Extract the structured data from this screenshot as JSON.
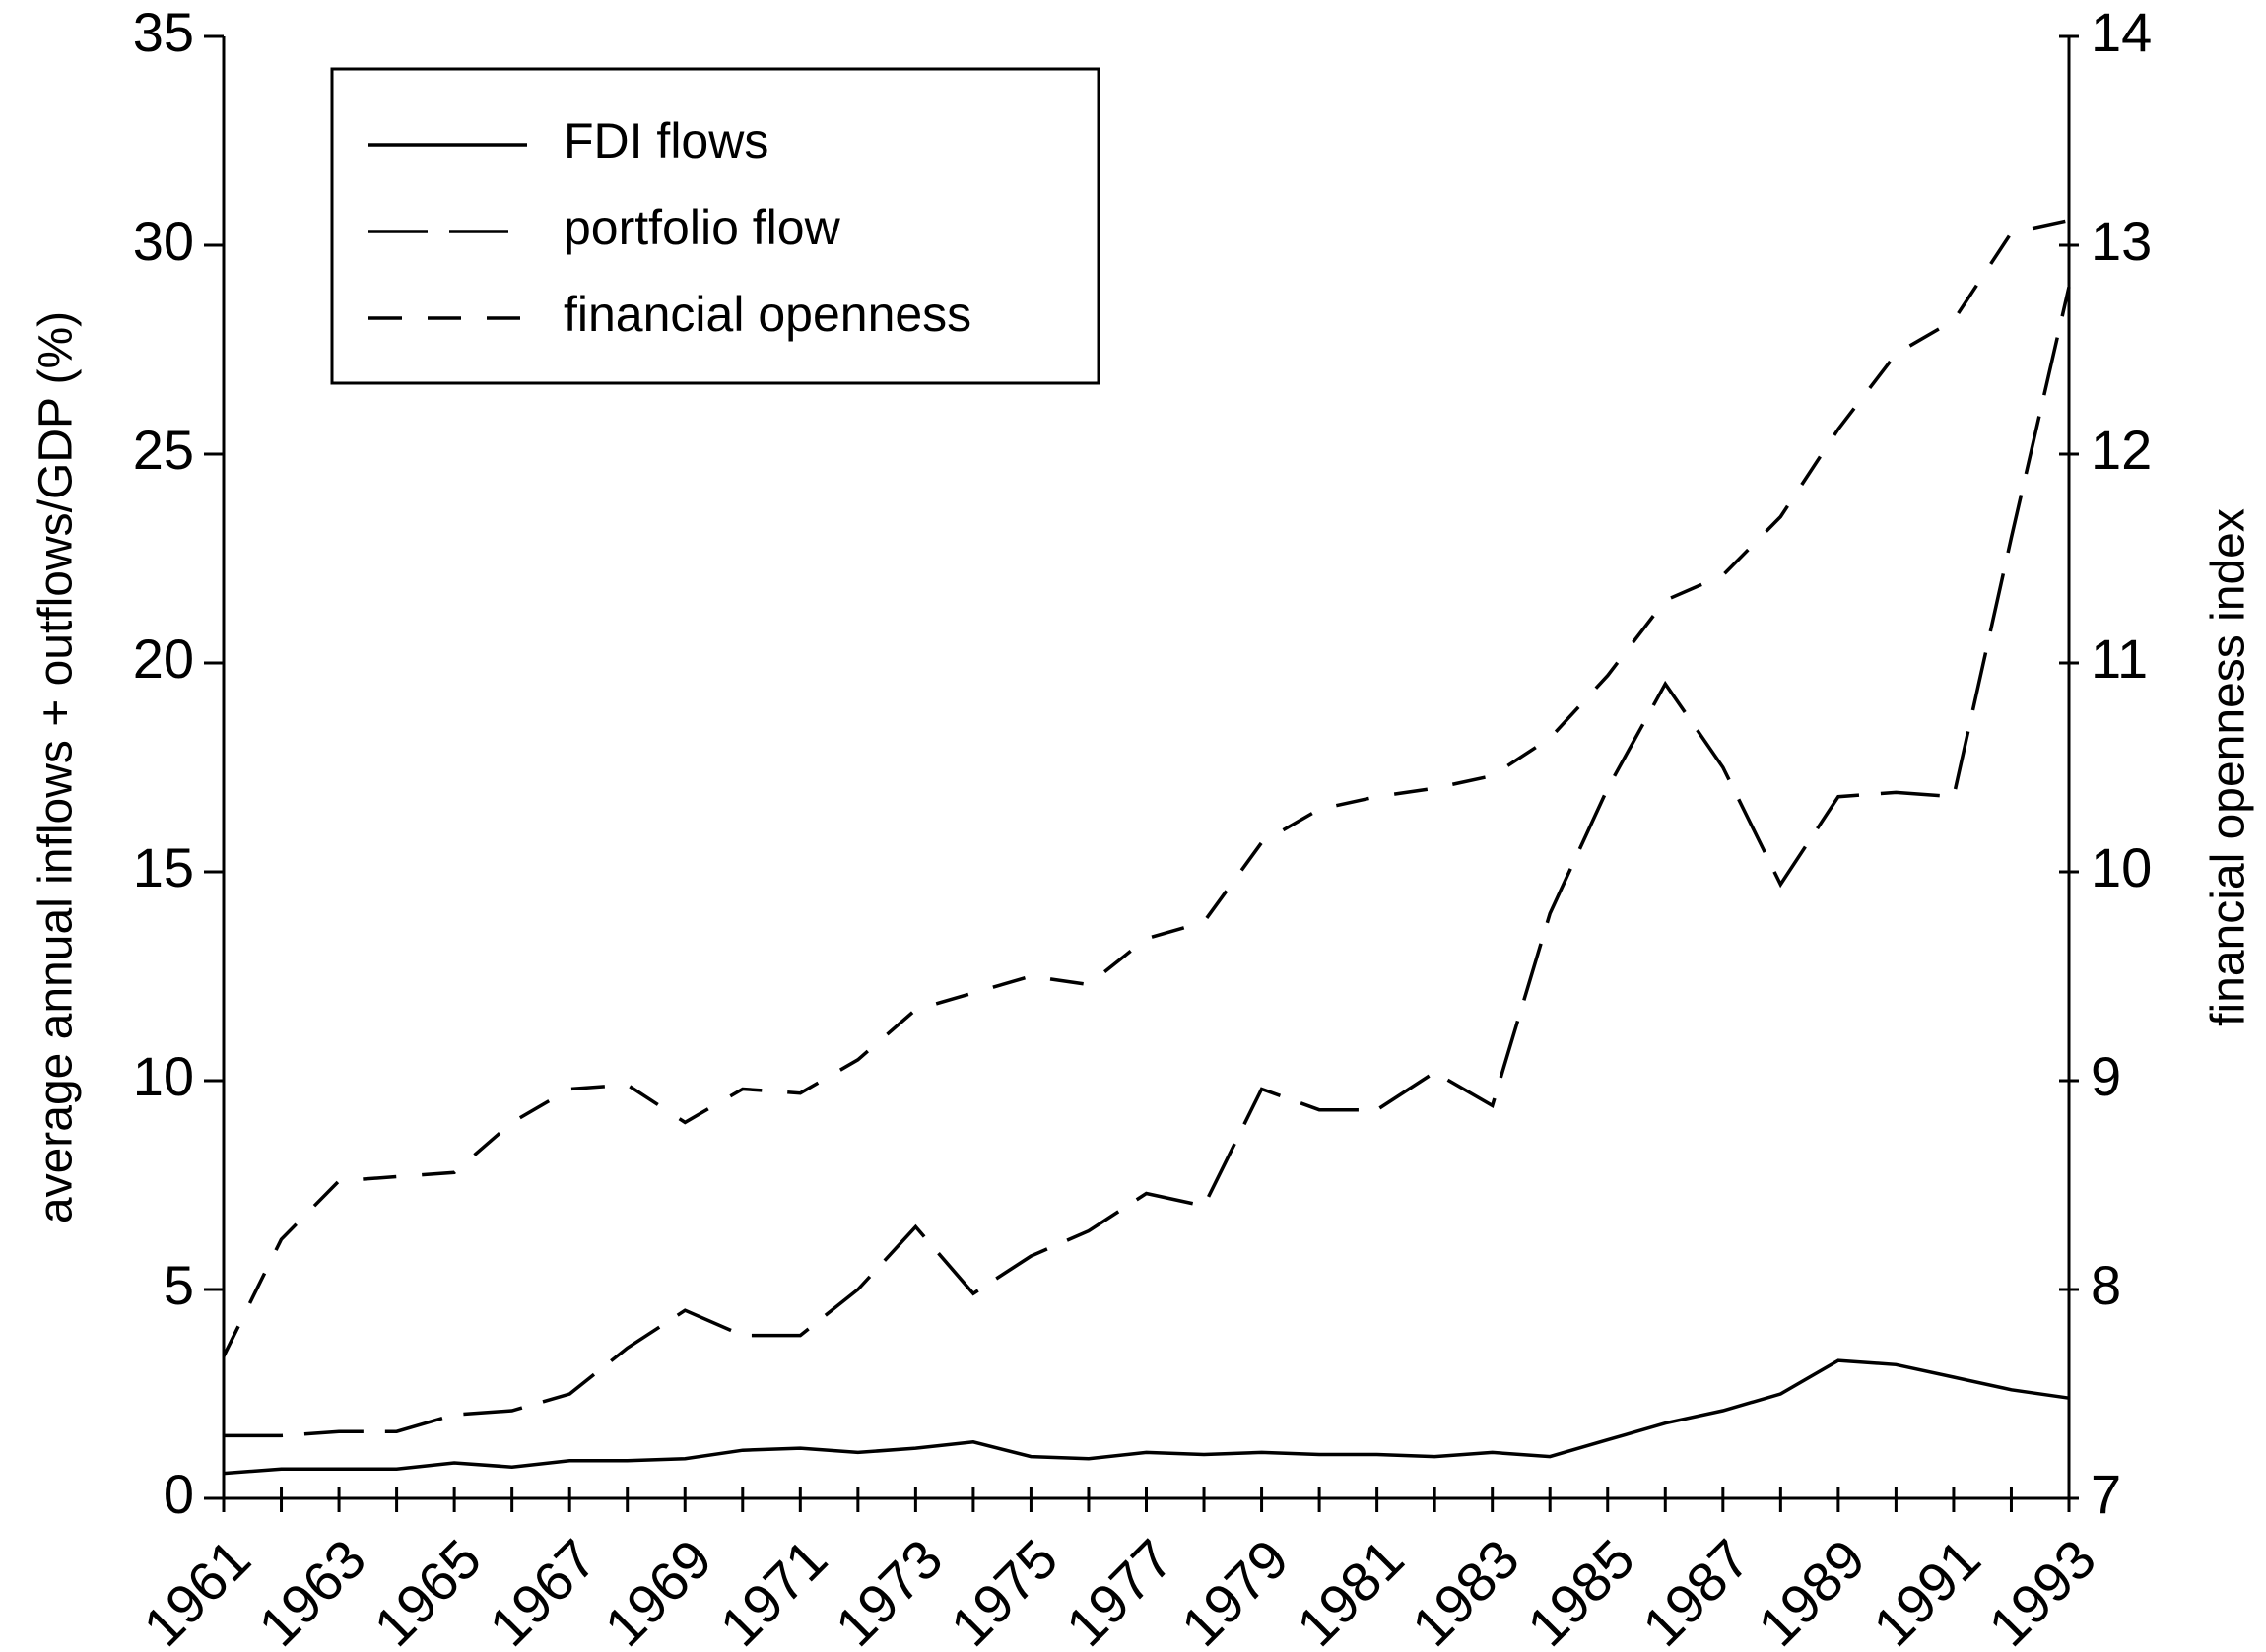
{
  "chart_data": {
    "type": "line",
    "categories": [
      "1961",
      null,
      "1963",
      null,
      "1965",
      null,
      "1967",
      null,
      "1969",
      null,
      "1971",
      null,
      "1973",
      null,
      "1975",
      null,
      "1977",
      null,
      "1979",
      null,
      "1981",
      null,
      "1983",
      null,
      "1985",
      null,
      "1987",
      null,
      "1989",
      null,
      "1991",
      null,
      "1993"
    ],
    "ylabel": "average annual inflows + outflows/GDP (%)",
    "y2label": "financial openness index",
    "ylim": [
      0,
      35
    ],
    "yticks": [
      0,
      5,
      10,
      15,
      20,
      25,
      30,
      35
    ],
    "y2lim": [
      7,
      14
    ],
    "y2ticks": [
      7,
      8,
      9,
      10,
      11,
      12,
      13,
      14
    ],
    "legend": "upper left",
    "series": [
      {
        "name": "FDI flows",
        "color": "#000000",
        "dash": "solid",
        "values": [
          0.6,
          0.7,
          0.7,
          0.7,
          0.85,
          0.75,
          0.9,
          0.9,
          0.95,
          1.15,
          1.2,
          1.1,
          1.2,
          1.35,
          1.0,
          0.95,
          1.1,
          1.05,
          1.1,
          1.05,
          1.05,
          1.0,
          1.1,
          1.0,
          1.4,
          1.8,
          2.1,
          2.5,
          3.3,
          3.2,
          2.9,
          2.6,
          2.4
        ]
      },
      {
        "name": "portfolio flow",
        "color": "#000000",
        "dash": "long",
        "values": [
          1.5,
          1.5,
          1.6,
          1.6,
          2.0,
          2.1,
          2.5,
          3.6,
          4.5,
          3.9,
          3.9,
          5.0,
          6.5,
          4.9,
          5.8,
          6.4,
          7.3,
          7.0,
          9.8,
          9.3,
          9.3,
          10.2,
          9.4,
          14.0,
          17.0,
          19.5,
          17.5,
          14.7,
          16.8,
          16.9,
          16.8,
          23.0,
          29.0
        ]
      },
      {
        "name": "financial openness",
        "color": "#000000",
        "dash": "short",
        "axis": "y2",
        "values": [
          7.68,
          8.24,
          8.52,
          8.54,
          8.56,
          8.8,
          8.96,
          8.98,
          8.8,
          8.96,
          8.94,
          9.1,
          9.34,
          9.42,
          9.5,
          9.46,
          9.68,
          9.76,
          10.14,
          10.3,
          10.36,
          10.4,
          10.46,
          10.64,
          10.94,
          11.3,
          11.42,
          11.7,
          12.12,
          12.48,
          12.64,
          13.06,
          13.12
        ]
      }
    ]
  }
}
